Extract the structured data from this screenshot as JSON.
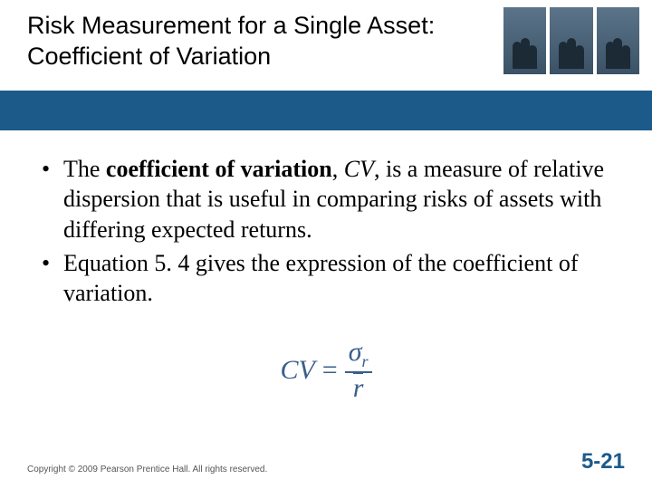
{
  "header": {
    "title": "Risk Measurement for a Single Asset: Coefficient of Variation"
  },
  "bullets": {
    "b1_pre": "The ",
    "b1_bold": "coefficient of variation",
    "b1_comma": ", ",
    "b1_ital": "CV",
    "b1_post": ", is a measure of relative dispersion that is useful in comparing risks of assets with differing expected returns.",
    "b2": "Equation 5. 4 gives the expression of the coefficient of variation."
  },
  "formula": {
    "lhs": "CV",
    "eq": "=",
    "num_sigma": "σ",
    "num_sub": "r",
    "den": "r"
  },
  "footer": {
    "copyright": "Copyright © 2009 Pearson Prentice Hall. All rights reserved.",
    "page": "5-21"
  },
  "colors": {
    "bar": "#1c5a8a",
    "formula": "#3a5f8a",
    "pagenum": "#1c5a8a"
  }
}
